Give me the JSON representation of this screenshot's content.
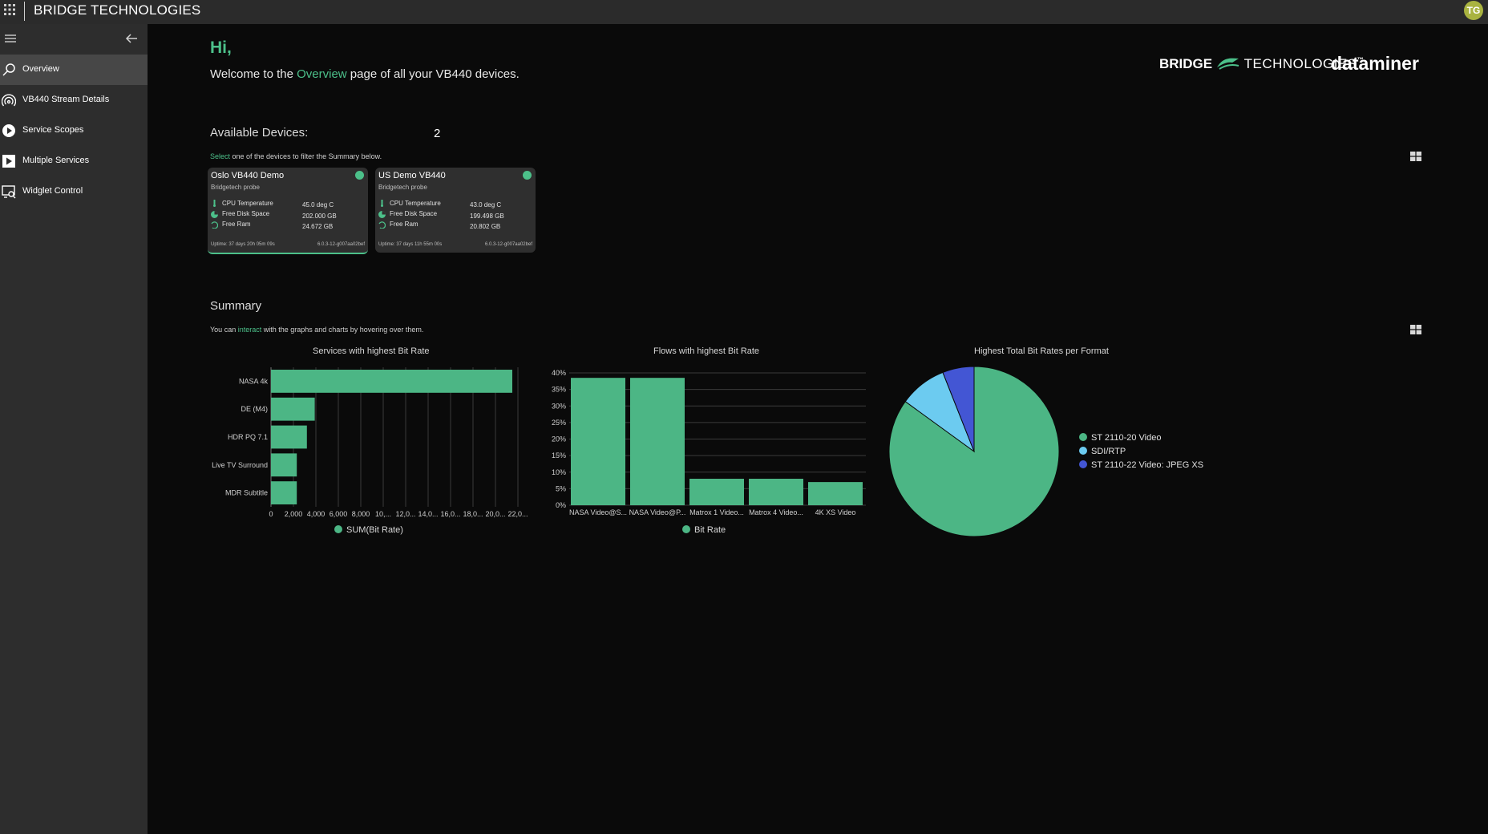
{
  "header": {
    "app_title": "BRIDGE TECHNOLOGIES",
    "avatar_initials": "TG",
    "avatar_color": "#a9b340"
  },
  "sidebar": {
    "items": [
      {
        "label": "Overview",
        "icon": "search-icon",
        "active": true
      },
      {
        "label": "VB440 Stream Details",
        "icon": "broadcast-icon"
      },
      {
        "label": "Service Scopes",
        "icon": "play-circle-icon"
      },
      {
        "label": "Multiple Services",
        "icon": "play-square-icon"
      },
      {
        "label": "Widglet Control",
        "icon": "widget-control-icon"
      }
    ]
  },
  "main": {
    "greeting": "Hi,",
    "welcome_prefix": "Welcome to the ",
    "welcome_highlight": "Overview",
    "welcome_suffix": " page of all your VB440 devices.",
    "logo_bridge_bold": "BRIDGE",
    "logo_bridge_thin": "TECHNOLOGIES",
    "logo_tm": "™",
    "logo_dataminer": "dataminer",
    "accent_color": "#4cc08a"
  },
  "devices": {
    "title": "Available Devices:",
    "count": "2",
    "hint_highlight": "Select",
    "hint_rest": " one of the devices to filter the Summary below.",
    "cards": [
      {
        "name": "Oslo VB440 Demo",
        "type": "Bridgetech probe",
        "status": "online",
        "metrics": [
          {
            "label": "CPU Temperature",
            "value": "45.0 deg C"
          },
          {
            "label": "Free Disk Space",
            "value": "202.000 GB"
          },
          {
            "label": "Free Ram",
            "value": "24.672 GB"
          }
        ],
        "uptime": "Uptime: 37 days 20h 05m 09s",
        "version": "6.0.3-12-g007aa02bef"
      },
      {
        "name": "US Demo VB440",
        "type": "Bridgetech probe",
        "status": "online",
        "metrics": [
          {
            "label": "CPU Temperature",
            "value": "43.0 deg C"
          },
          {
            "label": "Free Disk Space",
            "value": "199.498 GB"
          },
          {
            "label": "Free Ram",
            "value": "20.802 GB"
          }
        ],
        "uptime": "Uptime: 37 days 11h 55m 00s",
        "version": "6.0.3-12-g007aa02bef"
      }
    ]
  },
  "summary": {
    "title": "Summary",
    "hint_prefix": "You can ",
    "hint_highlight": "interact",
    "hint_suffix": " with the graphs and charts by hovering over them."
  },
  "chart_data": [
    {
      "type": "bar",
      "orientation": "horizontal",
      "title": "Services with highest Bit Rate",
      "categories": [
        "NASA 4k",
        "DE (M4)",
        "HDR PQ 7.1",
        "Live TV Surround",
        "MDR Subtitle"
      ],
      "series": [
        {
          "name": "SUM(Bit Rate)",
          "values": [
            21500,
            3900,
            3200,
            2300,
            2300
          ]
        }
      ],
      "xlim": [
        0,
        23000
      ],
      "x_ticks": [
        "0",
        "2,000",
        "4,000",
        "6,000",
        "8,000",
        "10,...",
        "12,0...",
        "14,0...",
        "16,0...",
        "18,0...",
        "20,0...",
        "22,0..."
      ],
      "color": "#4cb685",
      "grid": true,
      "legend": "bottom"
    },
    {
      "type": "bar",
      "title": "Flows with highest Bit Rate",
      "categories": [
        "NASA Video@S...",
        "NASA Video@P...",
        "Matrox 1 Video...",
        "Matrox 4 Video...",
        "4K XS Video"
      ],
      "series": [
        {
          "name": "Bit Rate",
          "values": [
            38.5,
            38.5,
            8,
            8,
            7
          ]
        }
      ],
      "ylim": [
        0,
        40
      ],
      "y_ticks": [
        "0%",
        "5%",
        "10%",
        "15%",
        "20%",
        "25%",
        "30%",
        "35%",
        "40%"
      ],
      "color": "#4cb685",
      "grid": true,
      "legend": "bottom"
    },
    {
      "type": "pie",
      "title": "Highest Total Bit Rates per Format",
      "labels": [
        "ST 2110-20 Video",
        "SDI/RTP",
        "ST 2110-22 Video: JPEG XS"
      ],
      "values": [
        85,
        9,
        6
      ],
      "colors": [
        "#4cb685",
        "#6ccbf0",
        "#4356d4"
      ],
      "legend": "right"
    }
  ]
}
